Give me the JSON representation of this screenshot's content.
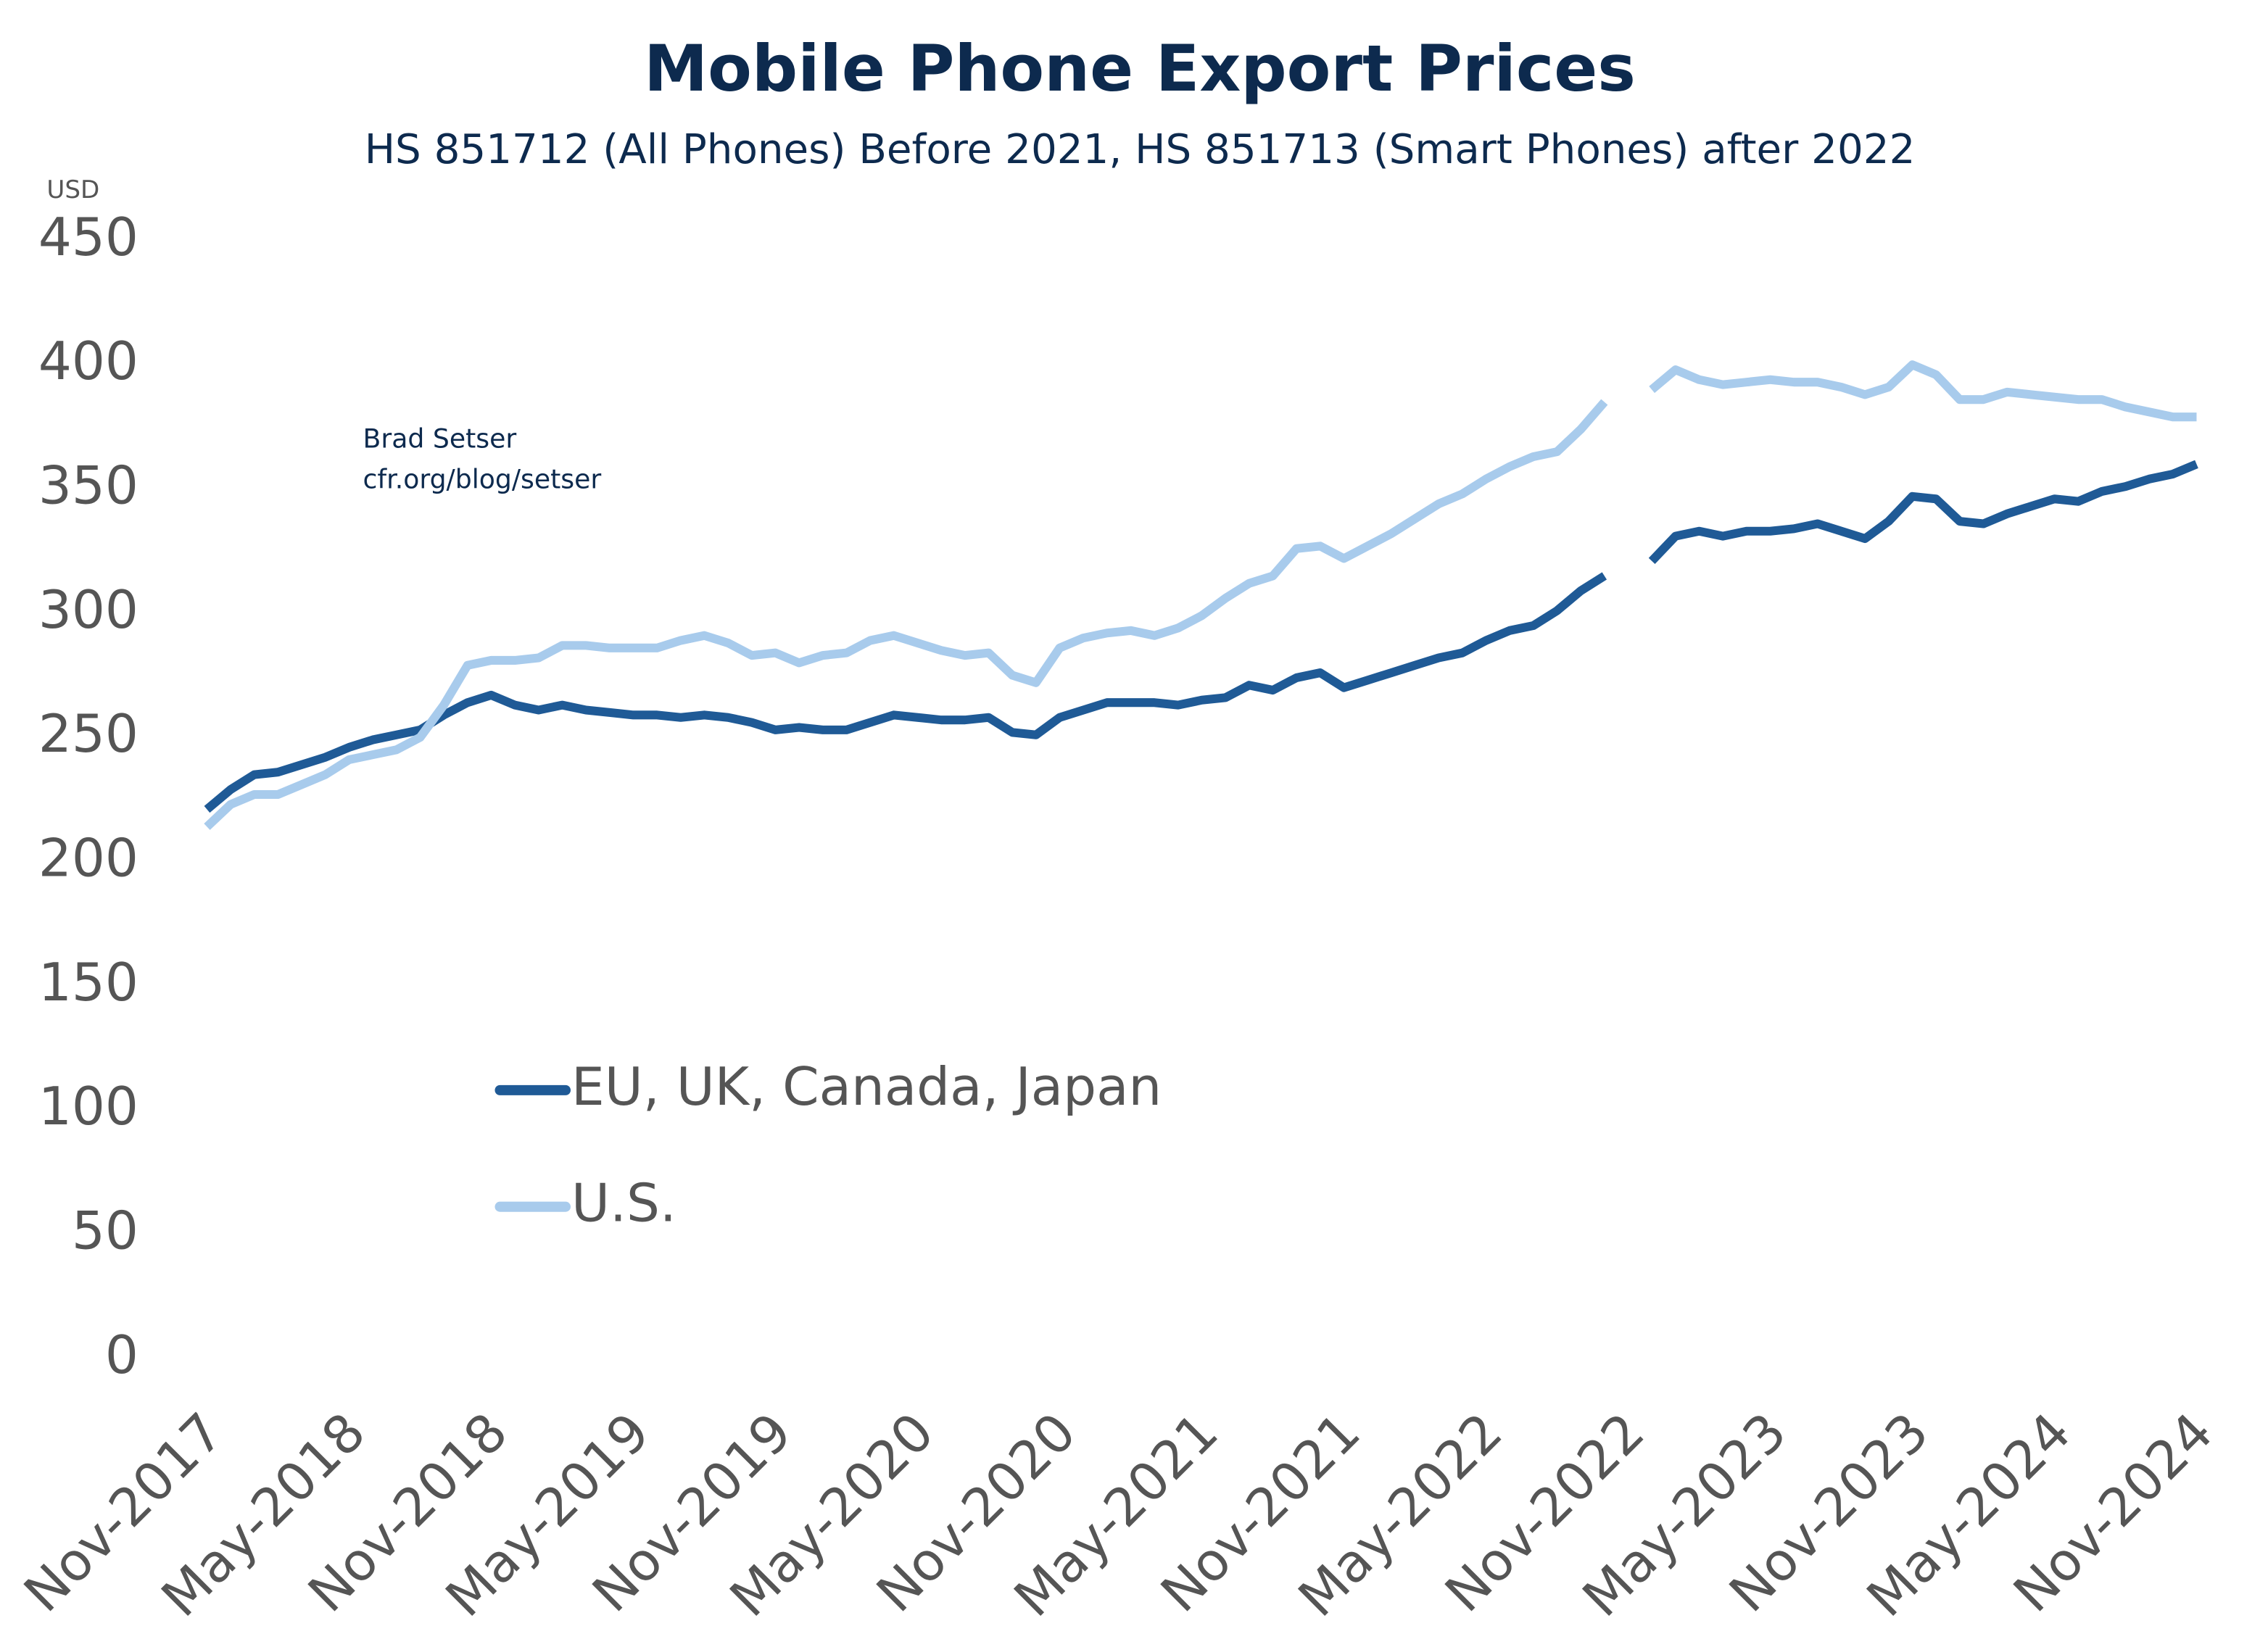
{
  "chart_data": {
    "type": "line",
    "title": "Mobile Phone Export Prices",
    "subtitle": "HS 851712 (All Phones) Before 2021, HS 851713 (Smart Phones) after 2022",
    "y_label": "USD",
    "annotations": [
      "Brad Setser",
      "cfr.org/blog/setser"
    ],
    "categories": [
      "Nov-2017",
      null,
      null,
      null,
      null,
      null,
      "May-2018",
      null,
      null,
      null,
      null,
      null,
      "Nov-2018",
      null,
      null,
      null,
      null,
      null,
      "May-2019",
      null,
      null,
      null,
      null,
      null,
      "Nov-2019",
      null,
      null,
      null,
      null,
      null,
      "May-2020",
      null,
      null,
      null,
      null,
      null,
      "Nov-2020",
      null,
      null,
      null,
      null,
      null,
      "May-2021",
      null,
      null,
      null,
      null,
      null,
      "Nov-2021",
      null,
      null,
      null,
      null,
      null,
      "May-2022",
      null,
      null,
      null,
      null,
      null,
      "Nov-2022",
      null,
      null,
      null,
      null,
      null,
      "May-2023",
      null,
      null,
      null,
      null,
      null,
      "Nov-2023",
      null,
      null,
      null,
      null,
      null,
      "May-2024",
      null,
      null,
      null,
      null,
      null,
      "Nov-2024"
    ],
    "series": [
      {
        "name": "EU, UK, Canada, Japan",
        "color": "#1f5a96",
        "values": [
          221,
          229,
          235,
          236,
          239,
          242,
          246,
          249,
          251,
          253,
          259,
          264,
          267,
          263,
          261,
          263,
          261,
          260,
          259,
          259,
          258,
          259,
          258,
          256,
          253,
          254,
          253,
          253,
          256,
          259,
          258,
          257,
          257,
          258,
          252,
          251,
          258,
          261,
          264,
          264,
          264,
          263,
          265,
          266,
          271,
          269,
          274,
          276,
          270,
          273,
          276,
          279,
          282,
          284,
          289,
          293,
          295,
          301,
          309,
          315,
          null,
          321,
          331,
          333,
          331,
          333,
          333,
          334,
          336,
          333,
          330,
          337,
          347,
          346,
          337,
          336,
          340,
          343,
          346,
          345,
          349,
          351,
          354,
          356,
          360
        ]
      },
      {
        "name": "U.S.",
        "color": "#a8cbec",
        "values": [
          214,
          223,
          227,
          227,
          231,
          235,
          241,
          243,
          245,
          250,
          263,
          279,
          281,
          281,
          282,
          287,
          287,
          286,
          286,
          286,
          289,
          291,
          288,
          283,
          284,
          280,
          283,
          284,
          289,
          291,
          288,
          285,
          283,
          284,
          275,
          272,
          286,
          290,
          292,
          293,
          291,
          294,
          299,
          306,
          312,
          315,
          326,
          327,
          322,
          327,
          332,
          338,
          344,
          348,
          354,
          359,
          363,
          365,
          374,
          385,
          null,
          390,
          398,
          394,
          392,
          393,
          394,
          393,
          393,
          391,
          388,
          391,
          400,
          396,
          386,
          386,
          389,
          388,
          387,
          386,
          386,
          383,
          381,
          379,
          379
        ]
      }
    ],
    "ylim": [
      0,
      450
    ],
    "yticks": [
      0,
      50,
      100,
      150,
      200,
      250,
      300,
      350,
      400,
      450
    ],
    "grid": false
  }
}
